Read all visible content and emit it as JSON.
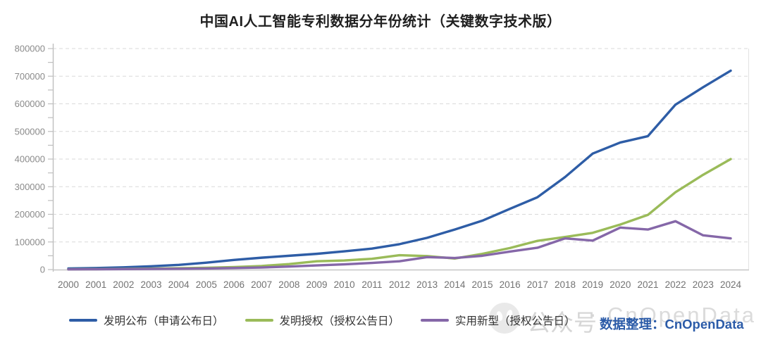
{
  "title": "中国AI人工智能专利数据分年份统计（关键数字技术版）",
  "chart_data": {
    "type": "line",
    "x": [
      2000,
      2001,
      2002,
      2003,
      2004,
      2005,
      2006,
      2007,
      2008,
      2009,
      2010,
      2011,
      2012,
      2013,
      2014,
      2015,
      2016,
      2017,
      2018,
      2019,
      2020,
      2021,
      2022,
      2023,
      2024
    ],
    "ylim": [
      0,
      800000
    ],
    "ytick_step": 100000,
    "grid": "dashed-horizontal",
    "legend_position": "bottom",
    "series": [
      {
        "name": "发明公布（申请公布日）",
        "color": "#2e5da6",
        "values": [
          4000,
          5500,
          8000,
          12000,
          17000,
          25000,
          35000,
          43000,
          50000,
          57000,
          66000,
          76000,
          92000,
          115000,
          145000,
          177000,
          220000,
          262000,
          335000,
          420000,
          460000,
          483000,
          597000,
          660000,
          720000
        ]
      },
      {
        "name": "发明授权（授权公告日）",
        "color": "#9abb59",
        "values": [
          1000,
          1500,
          2500,
          3500,
          5000,
          6500,
          9000,
          13000,
          20000,
          30000,
          33000,
          39000,
          52000,
          49000,
          40000,
          57000,
          78000,
          104000,
          118000,
          133000,
          163000,
          198000,
          280000,
          343000,
          400000
        ]
      },
      {
        "name": "实用新型（授权公告日）",
        "color": "#8567a8",
        "values": [
          800,
          1200,
          1800,
          2400,
          3000,
          4000,
          5500,
          7500,
          11000,
          15000,
          19000,
          24000,
          30000,
          45000,
          42000,
          50000,
          65000,
          79000,
          113000,
          105000,
          152000,
          145000,
          175000,
          124000,
          113000
        ]
      }
    ]
  },
  "watermark": {
    "icon": "wechat-ghost-icon",
    "text": "公众号",
    "separator": "·",
    "brand": "CnOpenData"
  },
  "attribution": {
    "label": "数据整理：CnOpenData",
    "color": "#2b5ba8"
  }
}
